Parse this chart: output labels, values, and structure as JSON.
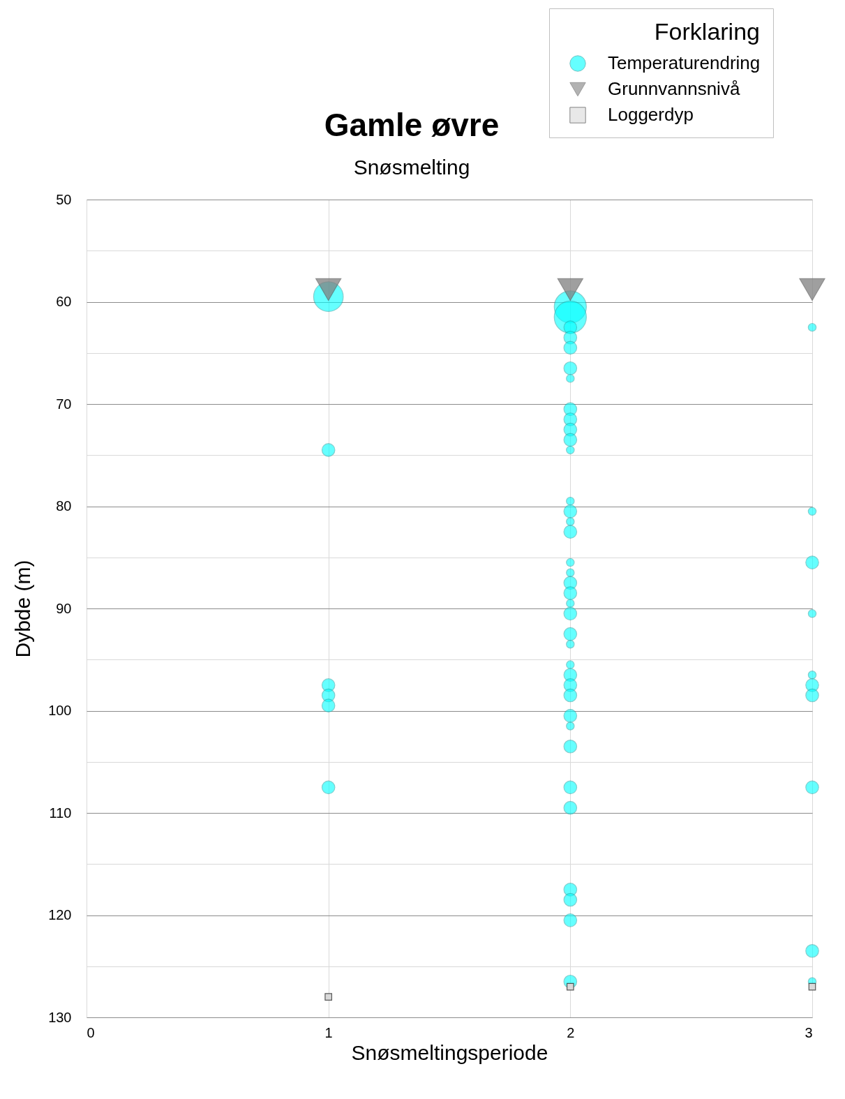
{
  "chart_data": {
    "type": "bubble",
    "title": "Gamle øvre",
    "subtitle": "Snøsmelting",
    "xlabel": "Snøsmeltingsperiode",
    "ylabel": "Dybde (m)",
    "legend_title": "Forklaring",
    "xlim": [
      0,
      3
    ],
    "xticks": [
      0,
      1,
      2,
      3
    ],
    "ylim": [
      130,
      50
    ],
    "yticks": [
      50,
      {
        "value": 55,
        "label": null
      },
      60,
      {
        "value": 65,
        "label": null
      },
      70,
      {
        "value": 75,
        "label": null
      },
      80,
      {
        "value": 85,
        "label": null
      },
      90,
      {
        "value": 95,
        "label": null
      },
      100,
      {
        "value": 105,
        "label": null
      },
      110,
      {
        "value": 115,
        "label": null
      },
      120,
      {
        "value": 125,
        "label": null
      },
      130
    ],
    "grid": true,
    "legend": "top right",
    "series": [
      {
        "name": "Temperaturendring",
        "color": "#00ffff",
        "marker": "circle",
        "x": [
          1,
          1,
          1,
          1,
          1,
          1,
          2,
          2,
          2,
          2,
          2,
          2,
          2,
          2,
          2,
          2,
          2,
          2,
          2,
          2,
          2,
          2,
          2,
          2,
          2,
          2,
          2,
          2,
          2,
          2,
          2,
          2,
          2,
          2,
          2,
          2,
          2,
          2,
          2,
          2,
          2,
          2,
          2,
          3,
          3,
          3,
          3,
          3,
          3,
          3,
          3,
          3,
          3
        ],
        "values": [
          59.5,
          74.5,
          97.5,
          98.5,
          99.5,
          107.5,
          60.5,
          61.5,
          62.5,
          63.5,
          64.5,
          66.5,
          67.5,
          70.5,
          71.5,
          72.5,
          73.5,
          74.5,
          79.5,
          80.5,
          81.5,
          82.5,
          85.5,
          86.5,
          87.5,
          88.5,
          89.5,
          90.5,
          92.5,
          93.5,
          95.5,
          96.5,
          97.5,
          98.5,
          100.5,
          101.5,
          103.5,
          107.5,
          109.5,
          117.5,
          118.5,
          120.5,
          126.5,
          62.5,
          80.5,
          85.5,
          90.5,
          96.5,
          97.5,
          98.5,
          107.5,
          123.5,
          126.5
        ],
        "sizes": [
          0.85,
          0.16,
          0.16,
          0.16,
          0.16,
          0.16,
          1,
          1,
          0.16,
          0.16,
          0.16,
          0.16,
          0.06,
          0.16,
          0.16,
          0.16,
          0.16,
          0.06,
          0.06,
          0.16,
          0.06,
          0.16,
          0.06,
          0.06,
          0.16,
          0.16,
          0.06,
          0.16,
          0.16,
          0.06,
          0.06,
          0.16,
          0.16,
          0.16,
          0.16,
          0.06,
          0.16,
          0.16,
          0.16,
          0.16,
          0.16,
          0.16,
          0.16,
          0.06,
          0.06,
          0.16,
          0.06,
          0.06,
          0.16,
          0.16,
          0.16,
          0.16,
          0.06
        ]
      },
      {
        "name": "Grunnvannsnivå",
        "type": "scatter",
        "color": "#808080",
        "marker": "triangle",
        "x": [
          1,
          2,
          3
        ],
        "values": [
          58.8,
          58.8,
          58.8
        ]
      },
      {
        "name": "Loggerdyp",
        "type": "scatter",
        "color": "#d9d9d9",
        "marker": "square",
        "x": [
          1,
          2,
          3
        ],
        "values": [
          128,
          127,
          127
        ]
      }
    ]
  }
}
